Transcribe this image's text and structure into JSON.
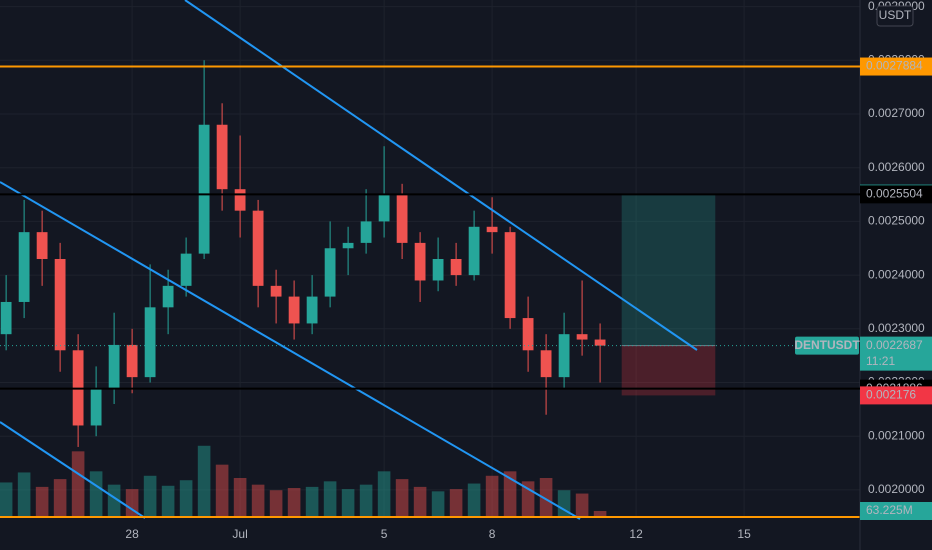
{
  "chart_data": {
    "type": "candlestick",
    "symbol": "DENTUSDT",
    "currency": "USDT",
    "countdown": "11:21",
    "x": [
      24.5,
      25,
      25.5,
      26,
      26.5,
      27,
      27.5,
      28,
      28.5,
      29,
      29.5,
      30,
      30.5,
      31,
      31.5,
      32,
      32.5,
      33,
      33.5,
      34,
      34.5,
      35,
      35.5,
      36,
      36.5,
      37,
      37.5,
      38,
      38.5,
      39,
      39.5,
      40,
      40.5,
      41
    ],
    "open": [
      0.00229,
      0.00235,
      0.00248,
      0.00243,
      0.00226,
      0.00212,
      0.00219,
      0.00227,
      0.00221,
      0.00234,
      0.00238,
      0.00244,
      0.00268,
      0.00256,
      0.00252,
      0.00238,
      0.00236,
      0.00231,
      0.00236,
      0.00245,
      0.00246,
      0.0025,
      0.00255,
      0.00246,
      0.00239,
      0.00243,
      0.0024,
      0.00249,
      0.00248,
      0.00232,
      0.00226,
      0.00221,
      0.00229,
      0.00228
    ],
    "high": [
      0.0024,
      0.00254,
      0.00252,
      0.00246,
      0.00229,
      0.00223,
      0.00233,
      0.0023,
      0.00242,
      0.00241,
      0.00247,
      0.0028,
      0.00272,
      0.00266,
      0.00254,
      0.00241,
      0.00239,
      0.0024,
      0.0025,
      0.00249,
      0.00256,
      0.00264,
      0.00257,
      0.00248,
      0.00247,
      0.00246,
      0.00252,
      0.002545,
      0.00249,
      0.00236,
      0.00229,
      0.00233,
      0.00239,
      0.00231
    ],
    "low": [
      0.00226,
      0.00232,
      0.00238,
      0.00222,
      0.00208,
      0.0021,
      0.00216,
      0.00218,
      0.0022,
      0.00229,
      0.00236,
      0.00243,
      0.00252,
      0.00247,
      0.00234,
      0.00231,
      0.00228,
      0.00229,
      0.00234,
      0.0024,
      0.00244,
      0.00247,
      0.00243,
      0.00235,
      0.00237,
      0.00238,
      0.00239,
      0.00244,
      0.0023,
      0.00222,
      0.00214,
      0.00219,
      0.00225,
      0.0022
    ],
    "close": [
      0.00235,
      0.00248,
      0.00243,
      0.00226,
      0.00212,
      0.00219,
      0.00227,
      0.00221,
      0.00234,
      0.00238,
      0.00244,
      0.00268,
      0.00256,
      0.00252,
      0.00238,
      0.00236,
      0.00231,
      0.00236,
      0.00245,
      0.00246,
      0.0025,
      0.00255,
      0.00246,
      0.00239,
      0.00243,
      0.0024,
      0.00249,
      0.00248,
      0.00232,
      0.00226,
      0.00221,
      0.00229,
      0.00228,
      0.0022687
    ],
    "volume": [
      320,
      410,
      280,
      350,
      600,
      420,
      300,
      260,
      380,
      290,
      340,
      650,
      480,
      360,
      300,
      250,
      270,
      280,
      330,
      260,
      300,
      420,
      350,
      280,
      240,
      260,
      310,
      380,
      420,
      330,
      360,
      250,
      220,
      63.225
    ],
    "volume_label": "63.225M",
    "vlim": [
      0,
      720
    ],
    "up_color": "#26a69a",
    "down_color": "#ef5350",
    "xlim": [
      24.33,
      48.22
    ],
    "xticks": [
      {
        "value": 28,
        "label": "28"
      },
      {
        "value": 31,
        "label": "Jul"
      },
      {
        "value": 35,
        "label": "5"
      },
      {
        "value": 38,
        "label": "8"
      },
      {
        "value": 42,
        "label": "12"
      },
      {
        "value": 45,
        "label": "15"
      }
    ],
    "ylim": [
      0.0019477,
      0.0029123
    ],
    "yticks": [
      {
        "value": 0.002,
        "label": "0.0020000"
      },
      {
        "value": 0.0021,
        "label": "0.0021000"
      },
      {
        "value": 0.0022,
        "label": "0.0022000"
      },
      {
        "value": 0.0023,
        "label": "0.0023000"
      },
      {
        "value": 0.0024,
        "label": "0.0024000"
      },
      {
        "value": 0.0025,
        "label": "0.0025000"
      },
      {
        "value": 0.0026,
        "label": "0.0026000"
      },
      {
        "value": 0.0027,
        "label": "0.0027000"
      },
      {
        "value": 0.0028,
        "label": "0.0028000"
      },
      {
        "value": 0.0029,
        "label": "0.0029000"
      }
    ],
    "grid": true,
    "position": {
      "x0": 41.6,
      "x1": 44.2,
      "entry": 0.0022687,
      "target": 0.0025518,
      "stop": 0.002176
    },
    "levels": [
      {
        "value": 0.0027884,
        "line": true,
        "color": "#ff9800",
        "text_color": "#000000"
      },
      {
        "value": 0.0025518,
        "line": false,
        "color": "#26a69a",
        "text_color": "#ffffff"
      },
      {
        "value": 0.0025504,
        "line": true,
        "color": "#000000",
        "text_color": "#ffffff"
      },
      {
        "value": 0.0022672,
        "line": false,
        "color": "#787b86",
        "text_color": "#ffffff"
      },
      {
        "value": 0.0021886,
        "line": true,
        "color": "#000000",
        "text_color": "#ffffff"
      },
      {
        "value": 0.002176,
        "line": false,
        "color": "#f23645",
        "text_color": "#ffffff"
      }
    ],
    "last_price": 0.0022687
  }
}
